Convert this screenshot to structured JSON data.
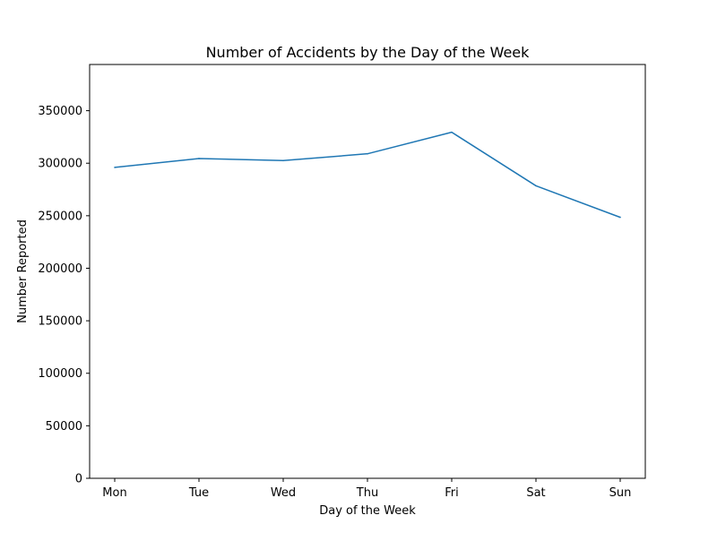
{
  "chart_data": {
    "type": "line",
    "title": "Number of Accidents by the Day of the Week",
    "xlabel": "Day of the Week",
    "ylabel": "Number Reported",
    "categories": [
      "Mon",
      "Tue",
      "Wed",
      "Thu",
      "Fri",
      "Sat",
      "Sun"
    ],
    "series": [
      {
        "values": [
          296000,
          304500,
          302500,
          309000,
          329500,
          278500,
          248500
        ],
        "color": "#1f77b4"
      }
    ],
    "ylim": [
      0,
      394000
    ],
    "yticks": [
      0,
      50000,
      100000,
      150000,
      200000,
      250000,
      300000,
      350000
    ],
    "ytick_labels": [
      "0",
      "50000",
      "100000",
      "150000",
      "200000",
      "250000",
      "300000",
      "350000"
    ],
    "grid": false,
    "legend": "none"
  }
}
